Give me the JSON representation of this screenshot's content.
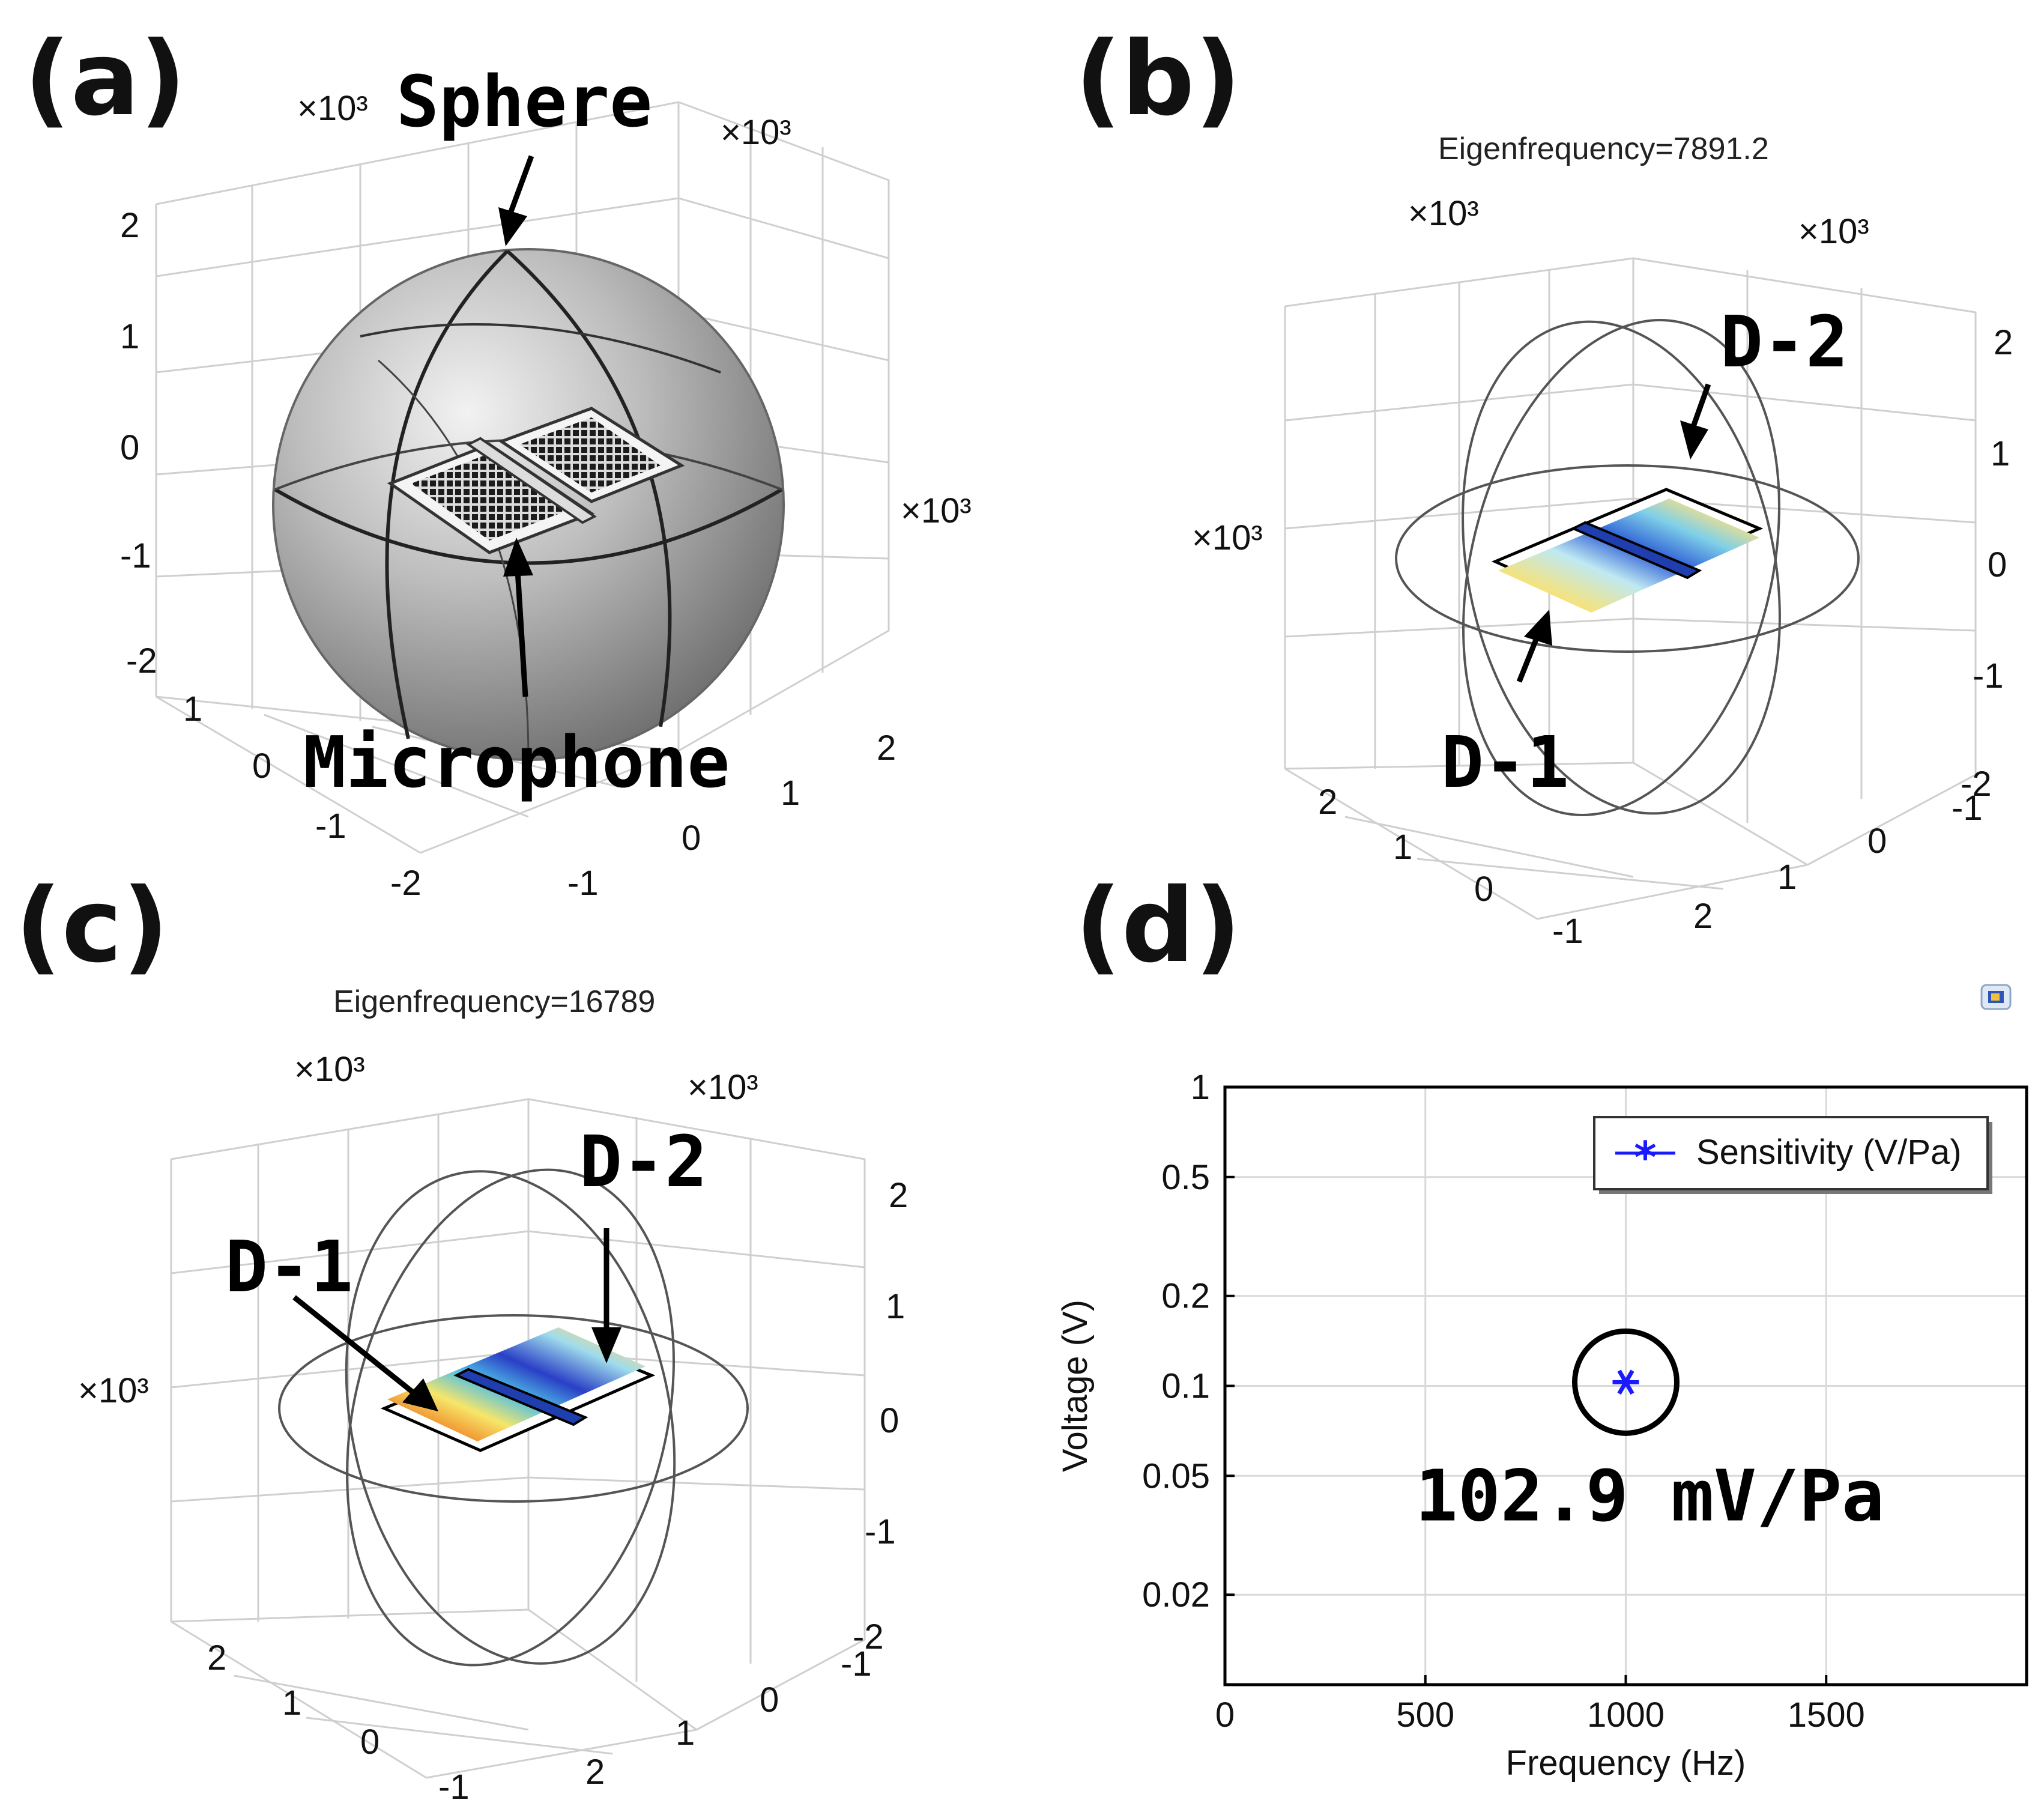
{
  "panels": {
    "a": {
      "label": "(a)",
      "callout_sphere": "Sphere",
      "callout_microphone": "Microphone",
      "scale_labels": [
        "×10³",
        "×10³",
        "×10³"
      ],
      "z_ticks": [
        "2",
        "1",
        "0",
        "-1",
        "-2"
      ],
      "x_ticks": [
        "1",
        "0",
        "-1",
        "-2"
      ],
      "y_ticks": [
        "2",
        "1",
        "0",
        "-1"
      ]
    },
    "b": {
      "label": "(b)",
      "eigen_text": "Eigenfrequency=7891.2",
      "callout_d1": "D-1",
      "callout_d2": "D-2",
      "scale_labels": [
        "×10³",
        "×10³",
        "×10³"
      ],
      "z_ticks": [
        "2",
        "1",
        "0",
        "-1",
        "-2"
      ],
      "x_ticks": [
        "2",
        "1",
        "0",
        "-1"
      ],
      "y_ticks": [
        "2",
        "1",
        "0",
        "-1"
      ]
    },
    "c": {
      "label": "(c)",
      "eigen_text": "Eigenfrequency=16789",
      "callout_d1": "D-1",
      "callout_d2": "D-2",
      "scale_labels": [
        "×10³",
        "×10³",
        "×10³"
      ],
      "z_ticks": [
        "2",
        "1",
        "0",
        "-1",
        "-2"
      ],
      "x_ticks": [
        "2",
        "1",
        "0",
        "-1"
      ],
      "y_ticks": [
        "2",
        "1",
        "0",
        "-1"
      ]
    },
    "d": {
      "label": "(d)",
      "annotation": "102.9 mV/Pa"
    }
  },
  "chart_data": {
    "type": "scatter",
    "title": "",
    "xlabel": "Frequency (Hz)",
    "ylabel": "Voltage (V)",
    "xlim": [
      0,
      2000
    ],
    "ylim": [
      0.01,
      1
    ],
    "yscale": "log",
    "xticks": [
      0,
      500,
      1000,
      1500
    ],
    "xtick_labels": [
      "0",
      "500",
      "1000",
      "1500"
    ],
    "yticks": [
      1,
      0.5,
      0.2,
      0.1,
      0.05,
      0.02
    ],
    "ytick_labels": [
      "1",
      "0.5",
      "0.2",
      "0.1",
      "0.05",
      "0.02"
    ],
    "grid": true,
    "legend": "top-right",
    "series": [
      {
        "name": "Sensitivity (V/Pa)",
        "color": "#1a1aff",
        "marker": "asterisk",
        "x": [
          1000
        ],
        "y": [
          0.1029
        ]
      }
    ]
  }
}
